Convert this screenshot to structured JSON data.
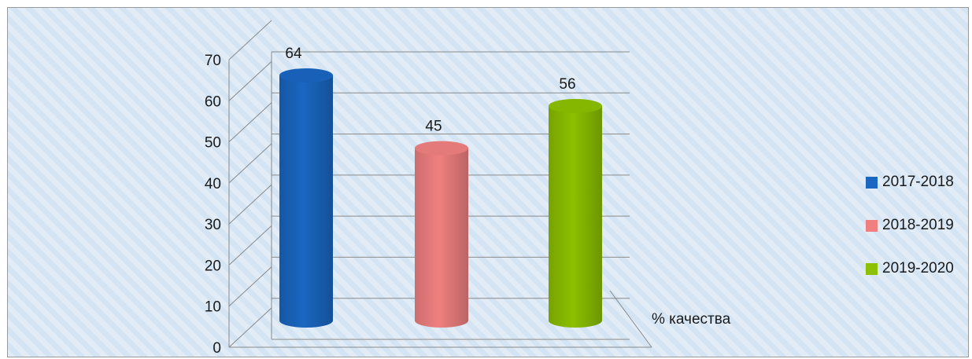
{
  "chart_data": {
    "type": "bar",
    "style": "3d-cylinder",
    "categories": [
      "% качества"
    ],
    "series": [
      {
        "name": "2017-2018",
        "values": [
          64
        ],
        "color": "#1a66c2"
      },
      {
        "name": "2018-2019",
        "values": [
          45
        ],
        "color": "#f08080"
      },
      {
        "name": "2019-2020",
        "values": [
          56
        ],
        "color": "#8cc000"
      }
    ],
    "ylim": [
      0,
      70
    ],
    "yticks": [
      "0",
      "10",
      "20",
      "30",
      "40",
      "50",
      "60",
      "70"
    ],
    "grid": true,
    "legend_position": "right",
    "data_labels": [
      "64",
      "45",
      "56"
    ]
  }
}
